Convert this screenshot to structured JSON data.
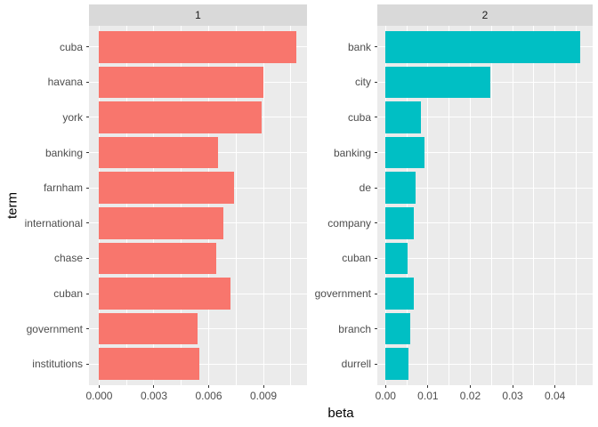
{
  "figure": {
    "xlabel": "beta",
    "ylabel": "term",
    "colors": {
      "background": "#FFFFFF",
      "panel_bg": "#EBEBEB",
      "strip_bg": "#D9D9D9",
      "grid": "#FFFFFF",
      "tick_mark": "#333333",
      "tick_label": "#4D4D4D",
      "strip_text": "#1A1A1A",
      "axis_title": "#000000"
    },
    "legend": "none",
    "grid": "on"
  },
  "chart_data": [
    {
      "type": "bar",
      "orientation": "horizontal",
      "facet_label": "1",
      "bar_color": "#F8766D",
      "categories": [
        "cuba",
        "havana",
        "york",
        "banking",
        "farnham",
        "international",
        "chase",
        "cuban",
        "government",
        "institutions"
      ],
      "values": [
        0.0108,
        0.009,
        0.0089,
        0.0065,
        0.0074,
        0.0068,
        0.0064,
        0.0072,
        0.0054,
        0.0055
      ],
      "xlabel": "beta",
      "ylabel": "term",
      "x_ticks": [
        0,
        0.003,
        0.006,
        0.009
      ],
      "x_tick_labels": [
        "0.000",
        "0.003",
        "0.006",
        "0.009"
      ],
      "x_minor_ticks": [
        0.0015,
        0.0045,
        0.0075,
        0.0105
      ],
      "xlim": [
        -0.00056,
        0.01139
      ]
    },
    {
      "type": "bar",
      "orientation": "horizontal",
      "facet_label": "2",
      "bar_color": "#00BFC4",
      "categories": [
        "bank",
        "city",
        "cuba",
        "banking",
        "de",
        "company",
        "cuban",
        "government",
        "branch",
        "durrell"
      ],
      "values": [
        0.046,
        0.0247,
        0.0083,
        0.0092,
        0.0071,
        0.0066,
        0.0053,
        0.0066,
        0.0058,
        0.0054
      ],
      "xlabel": "beta",
      "ylabel": "term",
      "x_ticks": [
        0,
        0.01,
        0.02,
        0.03,
        0.04
      ],
      "x_tick_labels": [
        "0.00",
        "0.01",
        "0.02",
        "0.03",
        "0.04"
      ],
      "x_minor_ticks": [
        0.005,
        0.015,
        0.025,
        0.035,
        0.045
      ],
      "xlim": [
        -0.00195,
        0.0489
      ]
    }
  ]
}
